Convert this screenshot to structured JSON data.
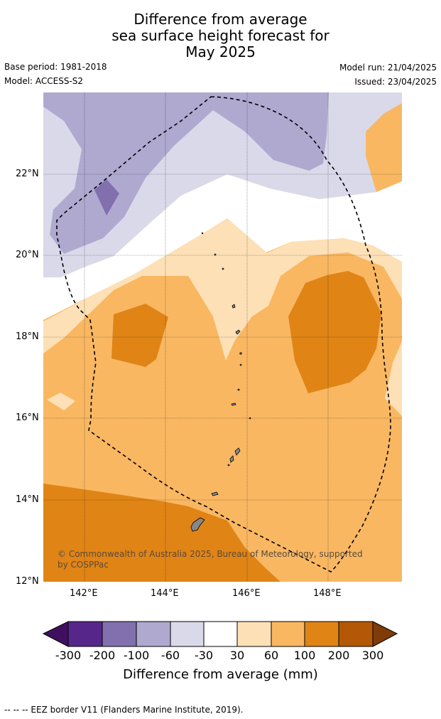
{
  "title": {
    "line1": "Difference from average",
    "line2": "sea surface height forecast for",
    "line3": "May 2025"
  },
  "meta": {
    "base_period": "Base period: 1981-2018",
    "model": "Model: ACCESS-S2",
    "model_run": "Model run: 21/04/2025",
    "issued": "Issued: 23/04/2025"
  },
  "map": {
    "lat_labels": [
      "22°N",
      "20°N",
      "18°N",
      "16°N",
      "14°N",
      "12°N"
    ],
    "lon_labels": [
      "142°E",
      "144°E",
      "146°E",
      "148°E"
    ],
    "copyright": "© Commonwealth of Australia 2025, Bureau of Meteorology, supported by COSPPac"
  },
  "colorbar": {
    "ticks": [
      "-300",
      "-200",
      "-100",
      "-60",
      "-30",
      "30",
      "60",
      "100",
      "200",
      "300"
    ],
    "colors": [
      "#3f1060",
      "#57268a",
      "#8170ad",
      "#afa9d0",
      "#d9d9ea",
      "#ffffff",
      "#fde0b6",
      "#f9b762",
      "#e08416",
      "#b35806",
      "#7f3b08"
    ],
    "label": "Difference from average (mm)"
  },
  "footer": {
    "legend": "--  --  -- EEZ border V11 (Flanders Marine Institute, 2019)."
  }
}
